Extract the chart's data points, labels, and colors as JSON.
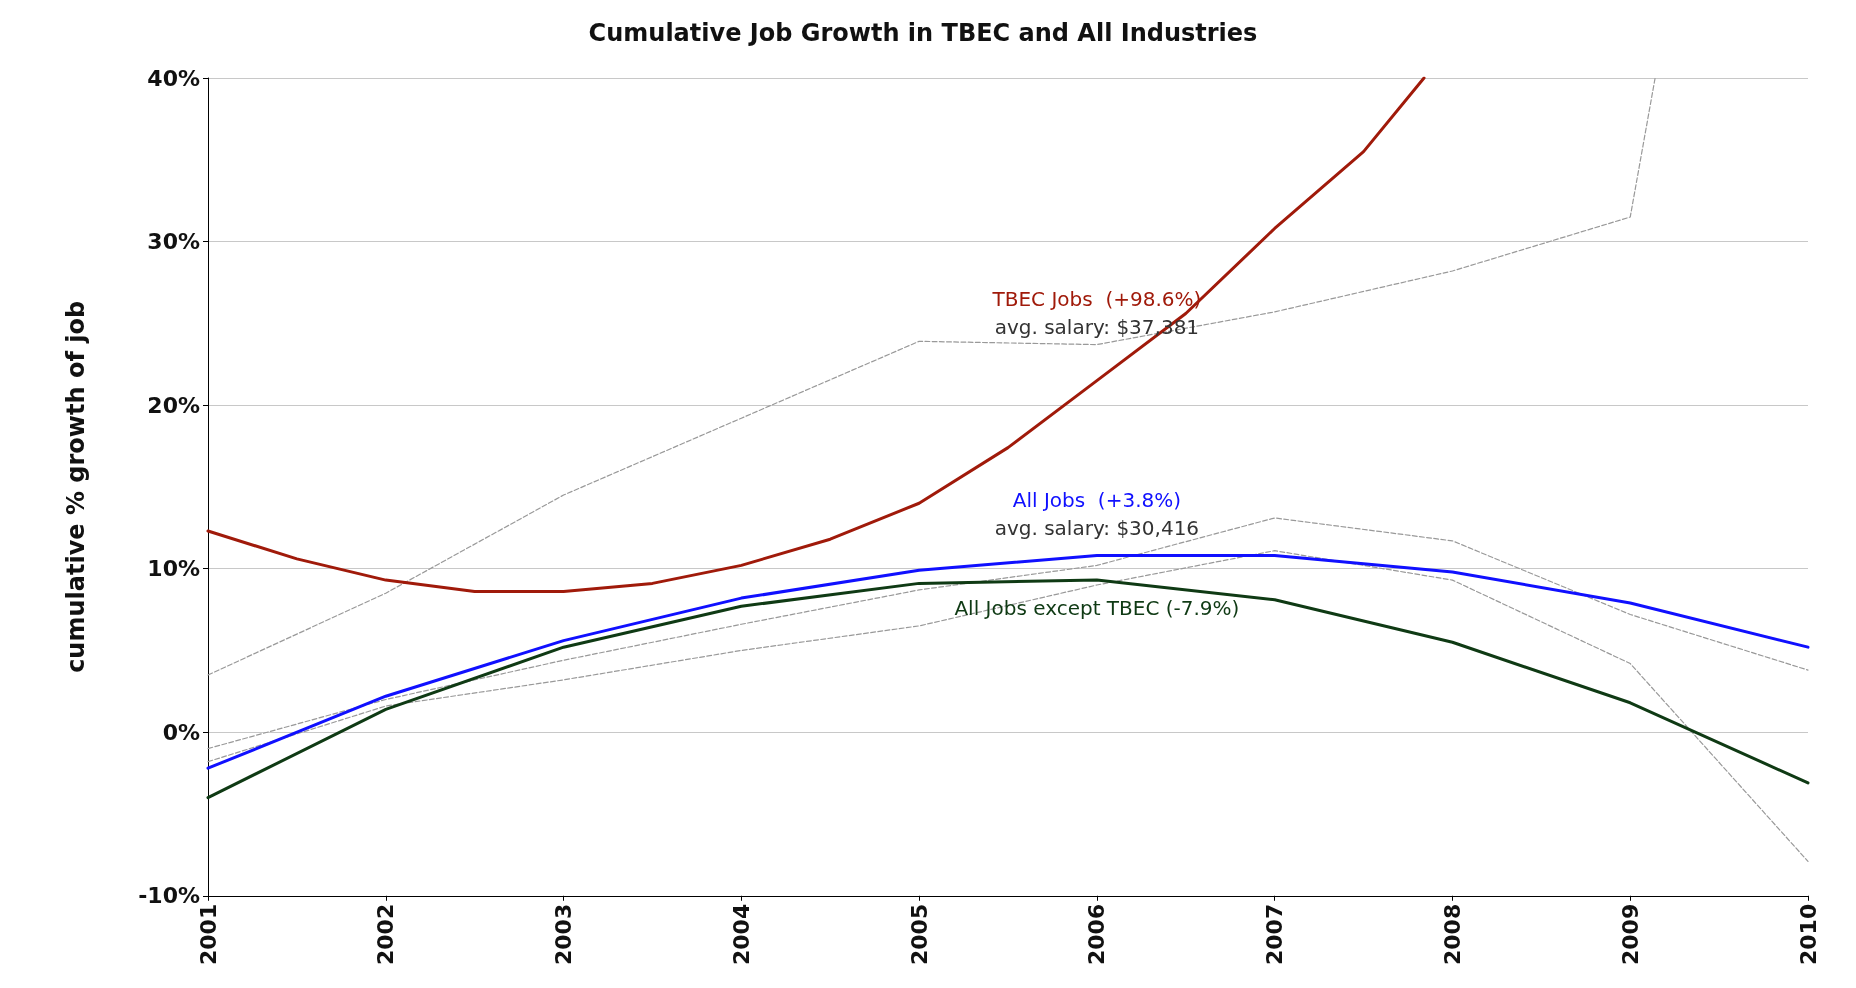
{
  "chart_data": {
    "type": "line",
    "title": "Cumulative Job Growth in TBEC and All Industries",
    "ylabel": "cumulative % growth of job",
    "xlim": [
      2001,
      2010
    ],
    "xticks": [
      2001,
      2002,
      2003,
      2004,
      2005,
      2006,
      2007,
      2008,
      2009,
      2010
    ],
    "ylim": [
      -10,
      40
    ],
    "yticks": [
      {
        "value": -10,
        "label": "-10%"
      },
      {
        "value": 0,
        "label": "0%"
      },
      {
        "value": 10,
        "label": "10%"
      },
      {
        "value": 20,
        "label": "20%"
      },
      {
        "value": 30,
        "label": "30%"
      },
      {
        "value": 40,
        "label": "40%"
      }
    ],
    "grid": "y",
    "marker": "none",
    "line_style": "solid",
    "series": [
      {
        "name": "TBEC Jobs  (+98.6%)",
        "color": "#a01a0a",
        "x": [
          2001,
          2001.5,
          2002,
          2002.5,
          2003,
          2003.5,
          2004,
          2004.5,
          2005,
          2005.5,
          2006,
          2006.5,
          2007,
          2007.5,
          2007.84
        ],
        "values": [
          12.3,
          10.6,
          9.3,
          8.6,
          8.6,
          9.1,
          10.2,
          11.8,
          14.0,
          17.4,
          21.5,
          25.6,
          30.8,
          35.5,
          40
        ]
      },
      {
        "name": "All Jobs  (+3.8%)",
        "color": "#1010ff",
        "x": [
          2001,
          2002,
          2003,
          2004,
          2005,
          2006,
          2007,
          2008,
          2009,
          2010
        ],
        "values": [
          -2.2,
          2.2,
          5.6,
          8.2,
          9.9,
          10.8,
          10.8,
          9.8,
          7.9,
          5.2
        ]
      },
      {
        "name": "All Jobs except TBEC (-7.9%)",
        "color": "#0f3a14",
        "x": [
          2001,
          2002,
          2003,
          2004,
          2005,
          2006,
          2007,
          2008,
          2009,
          2010
        ],
        "values": [
          -4.0,
          1.4,
          5.2,
          7.7,
          9.1,
          9.3,
          8.1,
          5.5,
          1.8,
          -3.1
        ]
      },
      {
        "color": "#999999",
        "line_style": "dashed",
        "x": [
          2001,
          2002,
          2003,
          2004,
          2005,
          2006,
          2007,
          2008,
          2009,
          2009.14
        ],
        "values": [
          3.5,
          8.5,
          14.5,
          19.2,
          23.9,
          23.7,
          25.7,
          28.2,
          31.5,
          40
        ]
      },
      {
        "color": "#999999",
        "line_style": "dashed",
        "x": [
          2001,
          2002,
          2003,
          2004,
          2005,
          2006,
          2007,
          2008,
          2009,
          2010
        ],
        "values": [
          -1.0,
          2.0,
          4.4,
          6.6,
          8.7,
          10.2,
          13.1,
          11.7,
          7.2,
          3.8
        ]
      },
      {
        "color": "#999999",
        "line_style": "dashed",
        "x": [
          2001,
          2002,
          2003,
          2004,
          2005,
          2006,
          2007,
          2008,
          2009,
          2010
        ],
        "values": [
          -1.8,
          1.6,
          3.2,
          5.0,
          6.5,
          9.0,
          11.1,
          9.3,
          4.2,
          -7.9
        ]
      }
    ],
    "annotations": [
      "avg. salary: $37,381",
      "avg. salary: $30,416"
    ]
  }
}
